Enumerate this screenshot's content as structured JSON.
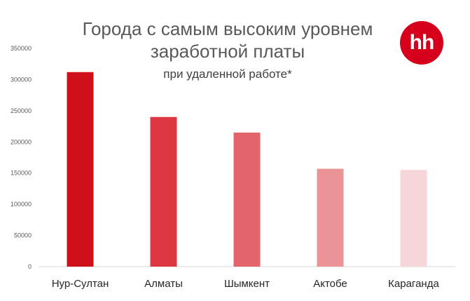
{
  "chart_data": {
    "type": "bar",
    "title": "Города с самым высоким уровнем",
    "title_line2": "заработной платы",
    "subtitle": "при удаленной работе*",
    "categories": [
      "Нур-Султан",
      "Алматы",
      "Шымкент",
      "Актобе",
      "Караганда"
    ],
    "values": [
      312000,
      240000,
      215000,
      157000,
      155000
    ],
    "bar_colors": [
      "#d01018",
      "#dc3640",
      "#e3646b",
      "#eb9497",
      "#f6d6d8"
    ],
    "ylim": [
      0,
      350000
    ],
    "yticks": [
      "0",
      "50000",
      "100000",
      "150000",
      "200000",
      "250000",
      "300000",
      "350000"
    ],
    "grid": false,
    "xlabel": "",
    "ylabel": ""
  },
  "logo": {
    "text": "hh",
    "color": "#d6001c"
  }
}
